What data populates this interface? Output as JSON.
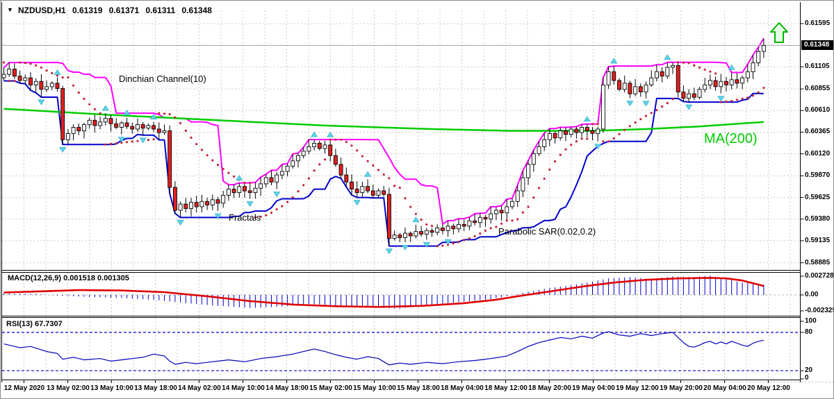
{
  "window": {
    "collapse_icon": "▼",
    "quote": {
      "symbol": "NZDUSD,H1",
      "open": "0.61319",
      "high": "0.61371",
      "low": "0.61311",
      "close": "0.61348"
    }
  },
  "annotations": {
    "donchian": "Dinchian Channel(10)",
    "fractals": "Fractals",
    "parabolic_sar": "Parabolic SAR(0.02,0.2)",
    "ma200": "MA(200)"
  },
  "indicator_labels": {
    "macd": "MACD(12,26,9) 0.001518 0.001305",
    "rsi": "RSI(13) 67.7307"
  },
  "price_axis": {
    "labels": [
      "0.61595",
      "0.61348",
      "0.61105",
      "0.60855",
      "0.60610",
      "0.60365",
      "0.60120",
      "0.59870",
      "0.59625",
      "0.59380",
      "0.59135",
      "0.58885"
    ],
    "values": [
      0.61595,
      0.61348,
      0.61105,
      0.60855,
      0.6061,
      0.60365,
      0.6012,
      0.5987,
      0.59625,
      0.5938,
      0.59135,
      0.58885
    ],
    "current_label": "0.61348",
    "current_value": 0.61348
  },
  "macd_axis": {
    "labels": [
      "0.002728",
      "0.00",
      "-0.002325"
    ],
    "values": [
      0.002728,
      0,
      -0.002325
    ]
  },
  "rsi_axis": {
    "labels": [
      "100",
      "80",
      "20",
      "0"
    ],
    "values": [
      100,
      80,
      20,
      0
    ]
  },
  "colors": {
    "background": "#ffffff",
    "grid": "#c9c9c9",
    "bull_candle": "#ffffff",
    "bear_candle": "#e02020",
    "candle_outline": "#000000",
    "donchian_upper": "#ff00ff",
    "donchian_lower": "#0000cc",
    "ma200": "#00cc00",
    "parabolic_sar": "#c42238",
    "fractals": "#5fd3e6",
    "macd_histogram": "#0000cc",
    "macd_signal": "#e00000",
    "rsi_line": "#0000bb",
    "rsi_levels": "#0000cc",
    "current_price_line": "#aaaaaa",
    "current_price_tag": "#000000",
    "trade_arrow": "#00b400"
  },
  "chart_data": [
    {
      "type": "candlestick",
      "symbol": "NZDUSD",
      "timeframe": "H1",
      "ylim": [
        0.58885,
        0.61595
      ],
      "current_price": 0.61348,
      "x_labels": [
        "12 May 2020",
        "13 May 02:00",
        "13 May 10:00",
        "13 May 18:00",
        "14 May 02:00",
        "14 May 10:00",
        "14 May 18:00",
        "15 May 02:00",
        "15 May 10:00",
        "15 May 18:00",
        "18 May 04:00",
        "18 May 12:00",
        "18 May 20:00",
        "19 May 04:00",
        "19 May 12:00",
        "19 May 20:00",
        "20 May 04:00",
        "20 May 12:00"
      ],
      "closes": [
        0.6102,
        0.6108,
        0.61,
        0.6095,
        0.6098,
        0.609,
        0.6094,
        0.6085,
        0.6088,
        0.6092,
        0.6086,
        0.6028,
        0.6035,
        0.6042,
        0.6038,
        0.6045,
        0.605,
        0.6044,
        0.6048,
        0.6052,
        0.6046,
        0.6042,
        0.6047,
        0.6043,
        0.604,
        0.6045,
        0.6041,
        0.6044,
        0.604,
        0.6036,
        0.6038,
        0.5974,
        0.5948,
        0.5955,
        0.595,
        0.5957,
        0.5952,
        0.5958,
        0.5954,
        0.596,
        0.5956,
        0.5965,
        0.5972,
        0.5968,
        0.5975,
        0.597,
        0.5968,
        0.5973,
        0.5978,
        0.5985,
        0.598,
        0.5988,
        0.5992,
        0.5998,
        0.6004,
        0.601,
        0.6015,
        0.602,
        0.6024,
        0.6018,
        0.6022,
        0.601,
        0.6,
        0.5988,
        0.598,
        0.5972,
        0.5968,
        0.5975,
        0.597,
        0.5965,
        0.597,
        0.5966,
        0.5916,
        0.592,
        0.5917,
        0.5922,
        0.5919,
        0.5924,
        0.5921,
        0.5925,
        0.5923,
        0.5928,
        0.5925,
        0.593,
        0.5927,
        0.5932,
        0.593,
        0.5936,
        0.5934,
        0.594,
        0.5938,
        0.5944,
        0.5948,
        0.5945,
        0.5952,
        0.5958,
        0.597,
        0.5985,
        0.6,
        0.6012,
        0.602,
        0.6028,
        0.6035,
        0.603,
        0.6038,
        0.6034,
        0.604,
        0.6036,
        0.6042,
        0.6038,
        0.6035,
        0.604,
        0.609,
        0.6105,
        0.6095,
        0.6085,
        0.6092,
        0.608,
        0.6088,
        0.6082,
        0.609,
        0.6098,
        0.6105,
        0.61,
        0.611,
        0.6112,
        0.6082,
        0.6075,
        0.608,
        0.6076,
        0.6085,
        0.609,
        0.6095,
        0.6088,
        0.6094,
        0.609,
        0.6096,
        0.6092,
        0.6098,
        0.6105,
        0.6115,
        0.6128,
        0.61348
      ],
      "overlays": {
        "donchian_channel_period": 10,
        "parabolic_sar": {
          "step": 0.02,
          "maximum": 0.2
        },
        "fractals": true,
        "ma200_points": [
          [
            0,
            0.6063
          ],
          [
            20,
            0.6056
          ],
          [
            40,
            0.605
          ],
          [
            60,
            0.6044
          ],
          [
            80,
            0.604
          ],
          [
            95,
            0.6038
          ],
          [
            110,
            0.6038
          ],
          [
            120,
            0.604
          ],
          [
            130,
            0.6043
          ],
          [
            142,
            0.6048
          ]
        ]
      }
    },
    {
      "type": "bar",
      "name": "MACD",
      "params": [
        12,
        26,
        9
      ],
      "last_macd": 0.001518,
      "last_signal": 0.001305,
      "ylim": [
        -0.002325,
        0.002728
      ],
      "macd_points": [
        [
          0,
          0.0002
        ],
        [
          6,
          0.00015
        ],
        [
          10,
          -0.0001
        ],
        [
          16,
          -0.0003
        ],
        [
          22,
          -0.00045
        ],
        [
          28,
          -0.0007
        ],
        [
          34,
          -0.0012
        ],
        [
          40,
          -0.0016
        ],
        [
          46,
          -0.0019
        ],
        [
          52,
          -0.0017
        ],
        [
          57,
          -0.0013
        ],
        [
          63,
          -0.0016
        ],
        [
          70,
          -0.0019
        ],
        [
          74,
          -0.002
        ],
        [
          80,
          -0.0014
        ],
        [
          86,
          -0.001
        ],
        [
          91,
          -0.0006
        ],
        [
          94,
          -0.0002
        ],
        [
          97,
          0.0003
        ],
        [
          101,
          0.0009
        ],
        [
          105,
          0.0013
        ],
        [
          109,
          0.0018
        ],
        [
          113,
          0.0024
        ],
        [
          117,
          0.0026
        ],
        [
          121,
          0.0023
        ],
        [
          125,
          0.0027
        ],
        [
          129,
          0.0026
        ],
        [
          132,
          0.0028
        ],
        [
          135,
          0.0023
        ],
        [
          138,
          0.0018
        ],
        [
          142,
          0.001518
        ]
      ],
      "signal_points": [
        [
          0,
          0.00035
        ],
        [
          8,
          0.00055
        ],
        [
          14,
          0.0007
        ],
        [
          22,
          0.00065
        ],
        [
          30,
          0.0004
        ],
        [
          38,
          -0.0002
        ],
        [
          46,
          -0.0009
        ],
        [
          54,
          -0.0014
        ],
        [
          62,
          -0.00165
        ],
        [
          70,
          -0.00175
        ],
        [
          78,
          -0.0016
        ],
        [
          86,
          -0.0012
        ],
        [
          92,
          -0.0007
        ],
        [
          96,
          -0.0002
        ],
        [
          102,
          0.0005
        ],
        [
          108,
          0.0012
        ],
        [
          114,
          0.0018
        ],
        [
          120,
          0.0022
        ],
        [
          126,
          0.0024
        ],
        [
          132,
          0.00248
        ],
        [
          135,
          0.0024
        ],
        [
          138,
          0.0021
        ],
        [
          142,
          0.001305
        ]
      ]
    },
    {
      "type": "line",
      "name": "RSI",
      "period": 13,
      "last_value": 67.7307,
      "ylim": [
        0,
        100
      ],
      "levels": [
        80,
        20
      ],
      "points": [
        [
          0,
          62
        ],
        [
          3,
          56
        ],
        [
          5,
          58
        ],
        [
          8,
          50
        ],
        [
          10,
          47
        ],
        [
          11,
          38
        ],
        [
          13,
          41
        ],
        [
          15,
          37
        ],
        [
          18,
          39
        ],
        [
          20,
          35
        ],
        [
          23,
          38
        ],
        [
          26,
          41
        ],
        [
          28,
          46
        ],
        [
          30,
          43
        ],
        [
          31,
          35
        ],
        [
          32,
          30
        ],
        [
          34,
          33
        ],
        [
          36,
          31
        ],
        [
          39,
          34
        ],
        [
          42,
          37
        ],
        [
          45,
          34
        ],
        [
          48,
          39
        ],
        [
          51,
          42
        ],
        [
          54,
          46
        ],
        [
          57,
          52
        ],
        [
          58,
          54
        ],
        [
          60,
          50
        ],
        [
          62,
          45
        ],
        [
          64,
          41
        ],
        [
          66,
          38
        ],
        [
          68,
          42
        ],
        [
          70,
          39
        ],
        [
          72,
          29
        ],
        [
          74,
          32
        ],
        [
          76,
          30
        ],
        [
          79,
          33
        ],
        [
          82,
          31
        ],
        [
          85,
          34
        ],
        [
          88,
          36
        ],
        [
          91,
          39
        ],
        [
          94,
          43
        ],
        [
          96,
          50
        ],
        [
          98,
          58
        ],
        [
          100,
          64
        ],
        [
          102,
          68
        ],
        [
          104,
          72
        ],
        [
          106,
          70
        ],
        [
          108,
          74
        ],
        [
          110,
          71
        ],
        [
          112,
          79
        ],
        [
          113,
          81
        ],
        [
          115,
          76
        ],
        [
          117,
          74
        ],
        [
          119,
          78
        ],
        [
          121,
          75
        ],
        [
          123,
          78
        ],
        [
          125,
          80
        ],
        [
          126,
          72
        ],
        [
          127,
          64
        ],
        [
          128,
          58
        ],
        [
          129,
          57
        ],
        [
          130,
          60
        ],
        [
          131,
          64
        ],
        [
          132,
          66
        ],
        [
          133,
          62
        ],
        [
          134,
          65
        ],
        [
          135,
          62
        ],
        [
          136,
          66
        ],
        [
          137,
          63
        ],
        [
          138,
          60
        ],
        [
          139,
          58
        ],
        [
          140,
          63
        ],
        [
          141,
          66
        ],
        [
          142,
          67.7307
        ]
      ]
    }
  ]
}
